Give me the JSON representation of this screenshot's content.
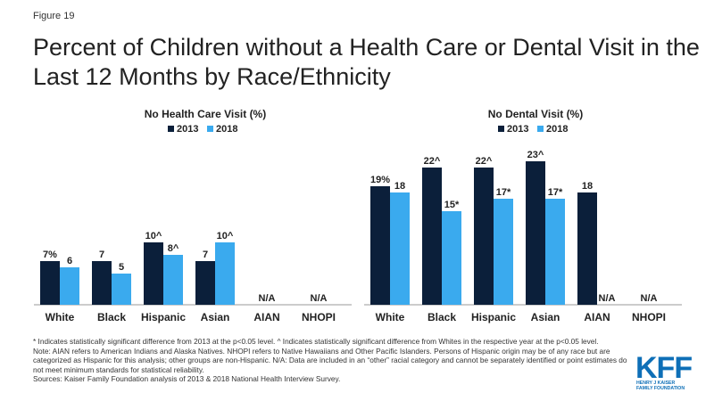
{
  "figure_label": "Figure 19",
  "title": "Percent of Children without a Health Care or Dental Visit in the Last 12 Months by Race/Ethnicity",
  "colors": {
    "series_2013": "#0b1f3a",
    "series_2018": "#3aaaee",
    "logo": "#0e6fb7"
  },
  "chart_data": [
    {
      "type": "bar",
      "title": "No Health Care Visit (%)",
      "categories": [
        "White",
        "Black",
        "Hispanic",
        "Asian",
        "AIAN",
        "NHOPI"
      ],
      "series": [
        {
          "name": "2013",
          "values": [
            7,
            7,
            10,
            7,
            null,
            null
          ],
          "labels": [
            "7%",
            "7",
            "10^",
            "7",
            "",
            ""
          ]
        },
        {
          "name": "2018",
          "values": [
            6,
            5,
            8,
            10,
            null,
            null
          ],
          "labels": [
            "6",
            "5",
            "8^",
            "10^",
            "",
            ""
          ]
        }
      ],
      "na_labels": [
        "",
        "",
        "",
        "",
        "N/A",
        "N/A"
      ],
      "ylim": [
        0,
        100
      ],
      "legend_position": "top-center",
      "grid": false
    },
    {
      "type": "bar",
      "title": "No Dental Visit (%)",
      "categories": [
        "White",
        "Black",
        "Hispanic",
        "Asian",
        "AIAN",
        "NHOPI"
      ],
      "series": [
        {
          "name": "2013",
          "values": [
            19,
            22,
            22,
            23,
            18,
            null
          ],
          "labels": [
            "19%",
            "22^",
            "22^",
            "23^",
            "18",
            ""
          ]
        },
        {
          "name": "2018",
          "values": [
            18,
            15,
            17,
            17,
            null,
            null
          ],
          "labels": [
            "18",
            "15*",
            "17*",
            "17*",
            "",
            ""
          ]
        }
      ],
      "na_labels": [
        "",
        "",
        "",
        "",
        "N/A",
        "N/A"
      ],
      "ylim": [
        0,
        100
      ],
      "legend_position": "top-center",
      "grid": false
    }
  ],
  "notes": [
    "* Indicates statistically significant difference from 2013 at the p<0.05 level. ^ Indicates statistically significant difference from Whites in the respective year at the p<0.05 level.",
    "Note: AIAN  refers to American Indians and Alaska Natives. NHOPI  refers to Native Hawaiians  and Other Pacific Islanders. Persons of Hispanic origin may be of any race but are categorized as Hispanic for this analysis; other groups are non-Hispanic. N/A: Data are included in an “other” racial category and cannot be separately identified or point estimates do not meet minimum  standards for statistical reliability.",
    "Sources: Kaiser Family Foundation analysis of 2013 & 2018 National Health Interview Survey."
  ],
  "logo": {
    "word": "KFF",
    "line1": "HENRY J KAISER",
    "line2": "FAMILY FOUNDATION"
  }
}
